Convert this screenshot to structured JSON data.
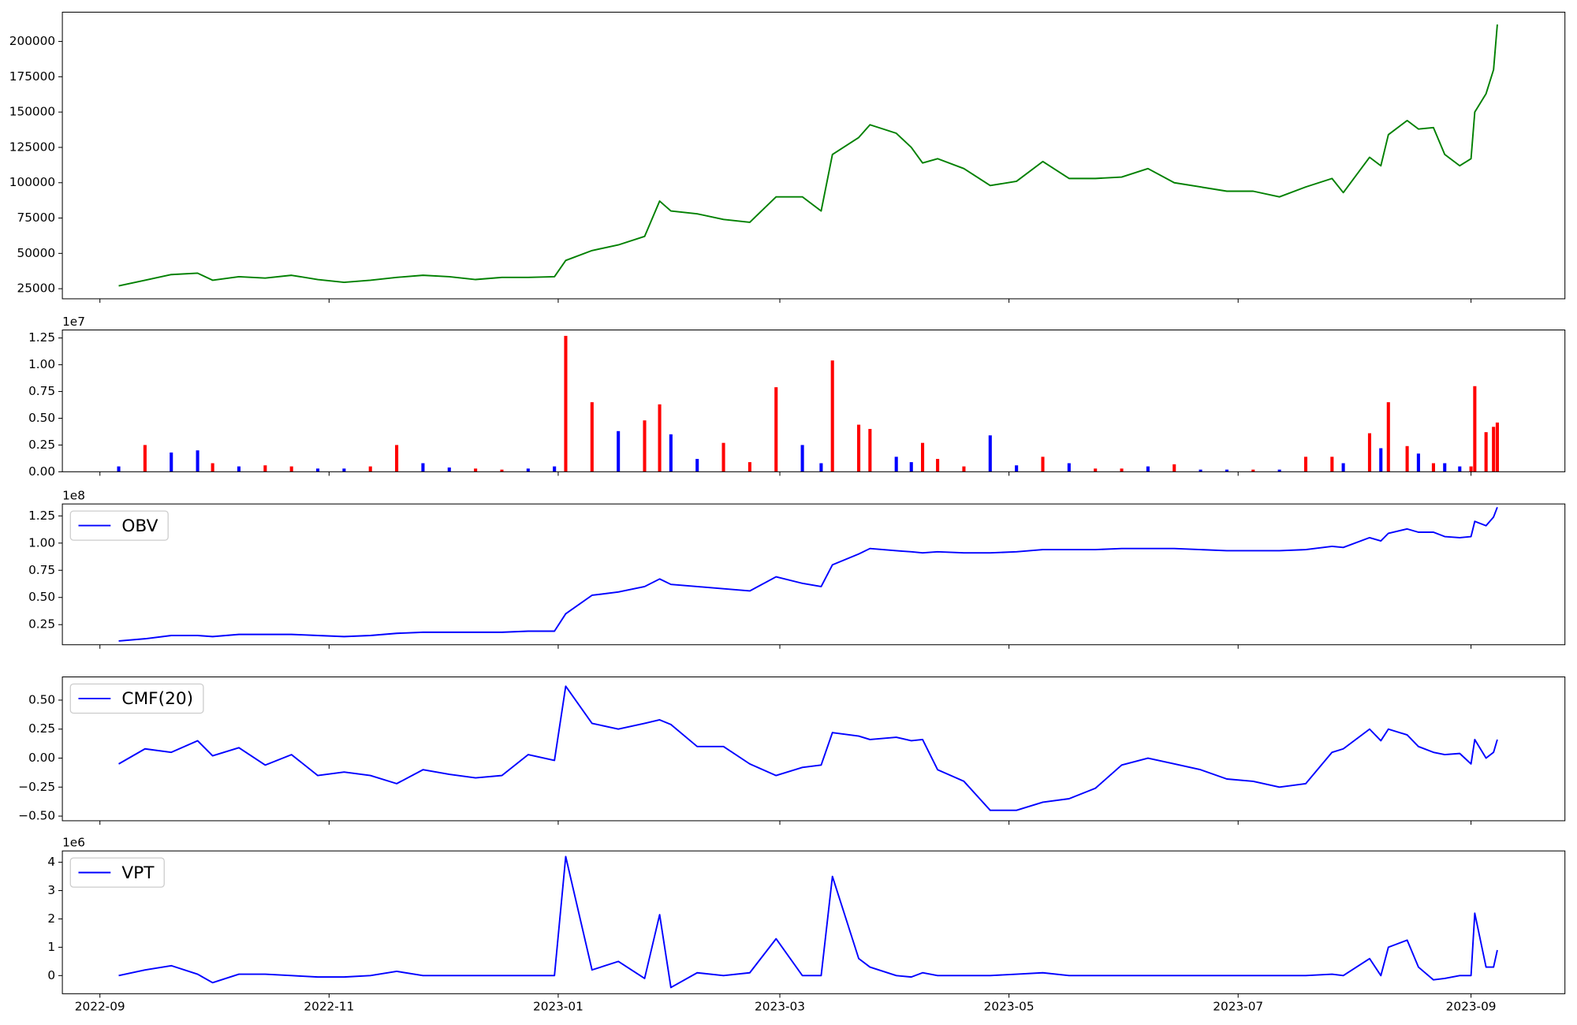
{
  "chart_data": [
    {
      "type": "line",
      "color": "green",
      "x": [
        "2022-09-06",
        "2022-09-13",
        "2022-09-20",
        "2022-09-27",
        "2022-10-01",
        "2022-10-08",
        "2022-10-15",
        "2022-10-22",
        "2022-10-29",
        "2022-11-05",
        "2022-11-12",
        "2022-11-19",
        "2022-11-26",
        "2022-12-03",
        "2022-12-10",
        "2022-12-17",
        "2022-12-24",
        "2022-12-31",
        "2023-01-03",
        "2023-01-10",
        "2023-01-17",
        "2023-01-24",
        "2023-01-28",
        "2023-01-31",
        "2023-02-07",
        "2023-02-14",
        "2023-02-21",
        "2023-02-28",
        "2023-03-07",
        "2023-03-12",
        "2023-03-15",
        "2023-03-22",
        "2023-03-25",
        "2023-04-01",
        "2023-04-05",
        "2023-04-08",
        "2023-04-12",
        "2023-04-19",
        "2023-04-26",
        "2023-05-03",
        "2023-05-10",
        "2023-05-17",
        "2023-05-24",
        "2023-05-31",
        "2023-06-07",
        "2023-06-14",
        "2023-06-21",
        "2023-06-28",
        "2023-07-05",
        "2023-07-12",
        "2023-07-19",
        "2023-07-26",
        "2023-07-29",
        "2023-08-05",
        "2023-08-08",
        "2023-08-10",
        "2023-08-15",
        "2023-08-18",
        "2023-08-22",
        "2023-08-25",
        "2023-08-29",
        "2023-09-01",
        "2023-09-02",
        "2023-09-05",
        "2023-09-07",
        "2023-09-08"
      ],
      "values": [
        27000,
        31000,
        35000,
        36000,
        31000,
        33500,
        32500,
        34500,
        31500,
        29500,
        31000,
        33000,
        34500,
        33500,
        31500,
        33000,
        33000,
        33500,
        45000,
        52000,
        56000,
        62000,
        87000,
        80000,
        78000,
        74000,
        72000,
        90000,
        90000,
        80000,
        120000,
        132000,
        141000,
        135000,
        125000,
        114000,
        117000,
        110000,
        98000,
        101000,
        115000,
        103000,
        103000,
        104000,
        110000,
        100000,
        97000,
        94000,
        94000,
        90000,
        97000,
        103000,
        93000,
        118000,
        112000,
        134000,
        144000,
        138000,
        139000,
        120000,
        112000,
        117000,
        150000,
        163000,
        180000,
        212000
      ],
      "xlim": [
        "2022-08-22",
        "2023-09-26"
      ],
      "ylim": [
        17860,
        220700
      ],
      "yticks": [
        25000,
        50000,
        75000,
        100000,
        125000,
        150000,
        175000,
        200000
      ],
      "grid": false
    },
    {
      "type": "bar",
      "offset_label": "1e7",
      "x": [
        "2022-09-06",
        "2022-09-13",
        "2022-09-20",
        "2022-09-27",
        "2022-10-01",
        "2022-10-08",
        "2022-10-15",
        "2022-10-22",
        "2022-10-29",
        "2022-11-05",
        "2022-11-12",
        "2022-11-19",
        "2022-11-26",
        "2022-12-03",
        "2022-12-10",
        "2022-12-17",
        "2022-12-24",
        "2022-12-31",
        "2023-01-03",
        "2023-01-10",
        "2023-01-17",
        "2023-01-24",
        "2023-01-28",
        "2023-01-31",
        "2023-02-07",
        "2023-02-14",
        "2023-02-21",
        "2023-02-28",
        "2023-03-07",
        "2023-03-12",
        "2023-03-15",
        "2023-03-22",
        "2023-03-25",
        "2023-04-01",
        "2023-04-05",
        "2023-04-08",
        "2023-04-12",
        "2023-04-19",
        "2023-04-26",
        "2023-05-03",
        "2023-05-10",
        "2023-05-17",
        "2023-05-24",
        "2023-05-31",
        "2023-06-07",
        "2023-06-14",
        "2023-06-21",
        "2023-06-28",
        "2023-07-05",
        "2023-07-12",
        "2023-07-19",
        "2023-07-26",
        "2023-07-29",
        "2023-08-05",
        "2023-08-08",
        "2023-08-10",
        "2023-08-15",
        "2023-08-18",
        "2023-08-22",
        "2023-08-25",
        "2023-08-29",
        "2023-09-01",
        "2023-09-02",
        "2023-09-05",
        "2023-09-07",
        "2023-09-08"
      ],
      "values": [
        0.05,
        0.25,
        0.18,
        0.2,
        0.08,
        0.05,
        0.06,
        0.05,
        0.03,
        0.03,
        0.05,
        0.25,
        0.08,
        0.04,
        0.03,
        0.02,
        0.03,
        0.05,
        1.27,
        0.65,
        0.38,
        0.48,
        0.63,
        0.35,
        0.12,
        0.27,
        0.09,
        0.79,
        0.25,
        0.08,
        1.04,
        0.44,
        0.4,
        0.14,
        0.09,
        0.27,
        0.12,
        0.05,
        0.34,
        0.06,
        0.14,
        0.08,
        0.03,
        0.03,
        0.05,
        0.07,
        0.02,
        0.02,
        0.02,
        0.02,
        0.14,
        0.14,
        0.08,
        0.36,
        0.22,
        0.65,
        0.24,
        0.17,
        0.08,
        0.08,
        0.05,
        0.05,
        0.8,
        0.37,
        0.42,
        0.46
      ],
      "colors": [
        "blue",
        "red",
        "blue",
        "blue",
        "red",
        "blue",
        "red",
        "red",
        "blue",
        "blue",
        "red",
        "red",
        "blue",
        "blue",
        "red",
        "red",
        "blue",
        "blue",
        "red",
        "red",
        "blue",
        "red",
        "red",
        "blue",
        "blue",
        "red",
        "red",
        "red",
        "blue",
        "blue",
        "red",
        "red",
        "red",
        "blue",
        "blue",
        "red",
        "red",
        "red",
        "blue",
        "blue",
        "red",
        "blue",
        "red",
        "red",
        "blue",
        "red",
        "blue",
        "blue",
        "red",
        "blue",
        "red",
        "red",
        "blue",
        "red",
        "blue",
        "red",
        "red",
        "blue",
        "red",
        "blue",
        "blue",
        "red",
        "red",
        "red",
        "red",
        "red"
      ],
      "xlim": [
        "2022-08-22",
        "2023-09-26"
      ],
      "ylim": [
        0,
        1.325
      ],
      "yticks": [
        {
          "value": 0,
          "label": "0.00"
        },
        {
          "value": 0.25,
          "label": "0.25"
        },
        {
          "value": 0.5,
          "label": "0.50"
        },
        {
          "value": 0.75,
          "label": "0.75"
        },
        {
          "value": 1,
          "label": "1.00"
        },
        {
          "value": 1.25,
          "label": "1.25"
        }
      ],
      "grid": false
    },
    {
      "type": "line",
      "offset_label": "1e8",
      "legend": "upper left",
      "x": [
        "2022-09-06",
        "2022-09-13",
        "2022-09-20",
        "2022-09-27",
        "2022-10-01",
        "2022-10-08",
        "2022-10-15",
        "2022-10-22",
        "2022-10-29",
        "2022-11-05",
        "2022-11-12",
        "2022-11-19",
        "2022-11-26",
        "2022-12-03",
        "2022-12-10",
        "2022-12-17",
        "2022-12-24",
        "2022-12-31",
        "2023-01-03",
        "2023-01-10",
        "2023-01-17",
        "2023-01-24",
        "2023-01-28",
        "2023-01-31",
        "2023-02-07",
        "2023-02-14",
        "2023-02-21",
        "2023-02-28",
        "2023-03-07",
        "2023-03-12",
        "2023-03-15",
        "2023-03-22",
        "2023-03-25",
        "2023-04-01",
        "2023-04-05",
        "2023-04-08",
        "2023-04-12",
        "2023-04-19",
        "2023-04-26",
        "2023-05-03",
        "2023-05-10",
        "2023-05-17",
        "2023-05-24",
        "2023-05-31",
        "2023-06-07",
        "2023-06-14",
        "2023-06-21",
        "2023-06-28",
        "2023-07-05",
        "2023-07-12",
        "2023-07-19",
        "2023-07-26",
        "2023-07-29",
        "2023-08-05",
        "2023-08-08",
        "2023-08-10",
        "2023-08-15",
        "2023-08-18",
        "2023-08-22",
        "2023-08-25",
        "2023-08-29",
        "2023-09-01",
        "2023-09-02",
        "2023-09-05",
        "2023-09-07",
        "2023-09-08"
      ],
      "series": [
        {
          "name": "OBV",
          "color": "blue",
          "values": [
            0.1,
            0.12,
            0.15,
            0.15,
            0.14,
            0.16,
            0.16,
            0.16,
            0.15,
            0.14,
            0.15,
            0.17,
            0.18,
            0.18,
            0.18,
            0.18,
            0.19,
            0.19,
            0.35,
            0.52,
            0.55,
            0.6,
            0.67,
            0.62,
            0.6,
            0.58,
            0.56,
            0.69,
            0.63,
            0.6,
            0.8,
            0.9,
            0.95,
            0.93,
            0.92,
            0.91,
            0.92,
            0.91,
            0.91,
            0.92,
            0.94,
            0.94,
            0.94,
            0.95,
            0.95,
            0.95,
            0.94,
            0.93,
            0.93,
            0.93,
            0.94,
            0.97,
            0.96,
            1.05,
            1.02,
            1.09,
            1.13,
            1.1,
            1.1,
            1.06,
            1.05,
            1.06,
            1.2,
            1.16,
            1.24,
            1.33
          ]
        }
      ],
      "xlim": [
        "2022-08-22",
        "2023-09-26"
      ],
      "ylim": [
        0.065,
        1.36
      ],
      "yticks": [
        {
          "value": 0.25,
          "label": "0.25"
        },
        {
          "value": 0.5,
          "label": "0.50"
        },
        {
          "value": 0.75,
          "label": "0.75"
        },
        {
          "value": 1,
          "label": "1.00"
        },
        {
          "value": 1.25,
          "label": "1.25"
        }
      ],
      "grid": false
    },
    {
      "type": "line",
      "legend": "upper left",
      "x": [
        "2022-09-06",
        "2022-09-13",
        "2022-09-20",
        "2022-09-27",
        "2022-10-01",
        "2022-10-08",
        "2022-10-15",
        "2022-10-22",
        "2022-10-29",
        "2022-11-05",
        "2022-11-12",
        "2022-11-19",
        "2022-11-26",
        "2022-12-03",
        "2022-12-10",
        "2022-12-17",
        "2022-12-24",
        "2022-12-31",
        "2023-01-03",
        "2023-01-10",
        "2023-01-17",
        "2023-01-24",
        "2023-01-28",
        "2023-01-31",
        "2023-02-07",
        "2023-02-14",
        "2023-02-21",
        "2023-02-28",
        "2023-03-07",
        "2023-03-12",
        "2023-03-15",
        "2023-03-22",
        "2023-03-25",
        "2023-04-01",
        "2023-04-05",
        "2023-04-08",
        "2023-04-12",
        "2023-04-19",
        "2023-04-26",
        "2023-05-03",
        "2023-05-10",
        "2023-05-17",
        "2023-05-24",
        "2023-05-31",
        "2023-06-07",
        "2023-06-14",
        "2023-06-21",
        "2023-06-28",
        "2023-07-05",
        "2023-07-12",
        "2023-07-19",
        "2023-07-26",
        "2023-07-29",
        "2023-08-05",
        "2023-08-08",
        "2023-08-10",
        "2023-08-15",
        "2023-08-18",
        "2023-08-22",
        "2023-08-25",
        "2023-08-29",
        "2023-09-01",
        "2023-09-02",
        "2023-09-05",
        "2023-09-07",
        "2023-09-08"
      ],
      "series": [
        {
          "name": "CMF(20)",
          "color": "blue",
          "values": [
            -0.05,
            0.08,
            0.05,
            0.15,
            0.02,
            0.09,
            -0.06,
            0.03,
            -0.15,
            -0.12,
            -0.15,
            -0.22,
            -0.1,
            -0.14,
            -0.17,
            -0.15,
            0.03,
            -0.02,
            0.62,
            0.3,
            0.25,
            0.3,
            0.33,
            0.29,
            0.1,
            0.1,
            -0.05,
            -0.15,
            -0.08,
            -0.06,
            0.22,
            0.19,
            0.16,
            0.18,
            0.15,
            0.16,
            -0.1,
            -0.2,
            -0.45,
            -0.45,
            -0.38,
            -0.35,
            -0.26,
            -0.06,
            0,
            -0.05,
            -0.1,
            -0.18,
            -0.2,
            -0.25,
            -0.22,
            0.05,
            0.08,
            0.25,
            0.15,
            0.25,
            0.2,
            0.1,
            0.05,
            0.03,
            0.04,
            -0.05,
            0.16,
            0,
            0.05,
            0.16
          ]
        }
      ],
      "xlim": [
        "2022-08-22",
        "2023-09-26"
      ],
      "ylim": [
        -0.54,
        0.7
      ],
      "yticks": [
        {
          "value": -0.5,
          "label": "−0.50"
        },
        {
          "value": -0.25,
          "label": "−0.25"
        },
        {
          "value": 0,
          "label": "0.00"
        },
        {
          "value": 0.25,
          "label": "0.25"
        },
        {
          "value": 0.5,
          "label": "0.50"
        }
      ],
      "grid": false
    },
    {
      "type": "line",
      "offset_label": "1e6",
      "legend": "upper left",
      "x": [
        "2022-09-06",
        "2022-09-13",
        "2022-09-20",
        "2022-09-27",
        "2022-10-01",
        "2022-10-08",
        "2022-10-15",
        "2022-10-22",
        "2022-10-29",
        "2022-11-05",
        "2022-11-12",
        "2022-11-19",
        "2022-11-26",
        "2022-12-03",
        "2022-12-10",
        "2022-12-17",
        "2022-12-24",
        "2022-12-31",
        "2023-01-03",
        "2023-01-10",
        "2023-01-17",
        "2023-01-24",
        "2023-01-28",
        "2023-01-31",
        "2023-02-07",
        "2023-02-14",
        "2023-02-21",
        "2023-02-28",
        "2023-03-07",
        "2023-03-12",
        "2023-03-15",
        "2023-03-22",
        "2023-03-25",
        "2023-04-01",
        "2023-04-05",
        "2023-04-08",
        "2023-04-12",
        "2023-04-19",
        "2023-04-26",
        "2023-05-03",
        "2023-05-10",
        "2023-05-17",
        "2023-05-24",
        "2023-05-31",
        "2023-06-07",
        "2023-06-14",
        "2023-06-21",
        "2023-06-28",
        "2023-07-05",
        "2023-07-12",
        "2023-07-19",
        "2023-07-26",
        "2023-07-29",
        "2023-08-05",
        "2023-08-08",
        "2023-08-10",
        "2023-08-15",
        "2023-08-18",
        "2023-08-22",
        "2023-08-25",
        "2023-08-29",
        "2023-09-01",
        "2023-09-02",
        "2023-09-05",
        "2023-09-07",
        "2023-09-08"
      ],
      "series": [
        {
          "name": "VPT",
          "color": "blue",
          "values": [
            0,
            0.2,
            0.35,
            0.05,
            -0.25,
            0.05,
            0.05,
            0,
            -0.05,
            -0.05,
            0,
            0.15,
            0,
            0,
            0,
            0,
            0,
            0,
            4.2,
            0.2,
            0.5,
            -0.1,
            2.15,
            -0.42,
            0.1,
            0,
            0.1,
            1.3,
            0,
            0,
            3.5,
            0.6,
            0.3,
            0,
            -0.05,
            0.1,
            0,
            0,
            0,
            0.05,
            0.1,
            0,
            0,
            0,
            0,
            0,
            0,
            0,
            0,
            0,
            0,
            0.05,
            0,
            0.6,
            0,
            1,
            1.25,
            0.3,
            -0.15,
            -0.1,
            0,
            0,
            2.2,
            0.3,
            0.3,
            0.9
          ]
        }
      ],
      "xlim": [
        "2022-08-22",
        "2023-09-26"
      ],
      "xticks": [
        "2022-09",
        "2022-11",
        "2023-01",
        "2023-03",
        "2023-05",
        "2023-07",
        "2023-09"
      ],
      "ylim": [
        -0.64,
        4.4
      ],
      "yticks": [
        0,
        1,
        2,
        3,
        4
      ],
      "grid": false
    }
  ]
}
